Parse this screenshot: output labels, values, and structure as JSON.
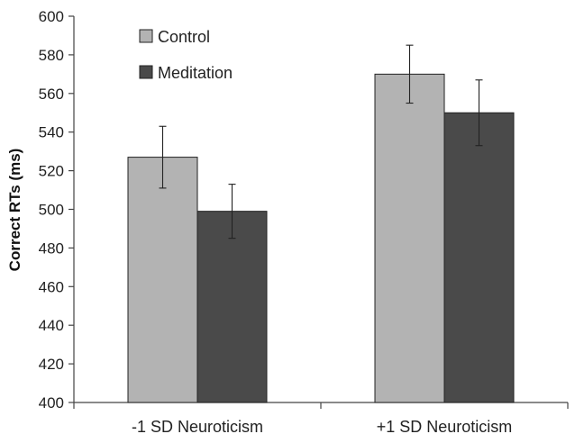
{
  "chart_data": {
    "type": "bar",
    "title": "",
    "xlabel": "",
    "ylabel": "Correct RTs (ms)",
    "ylim": [
      400,
      600
    ],
    "yticks": [
      400,
      420,
      440,
      460,
      480,
      500,
      520,
      540,
      560,
      580,
      600
    ],
    "categories": [
      "-1 SD Neuroticism",
      "+1 SD Neuroticism"
    ],
    "series": [
      {
        "name": "Control",
        "color": "#b3b3b3",
        "values": [
          527,
          570
        ],
        "error": [
          16,
          15
        ]
      },
      {
        "name": "Meditation",
        "color": "#4a4a4a",
        "values": [
          499,
          550
        ],
        "error": [
          14,
          17
        ]
      }
    ],
    "legend_position": "top-left",
    "grid": false
  }
}
